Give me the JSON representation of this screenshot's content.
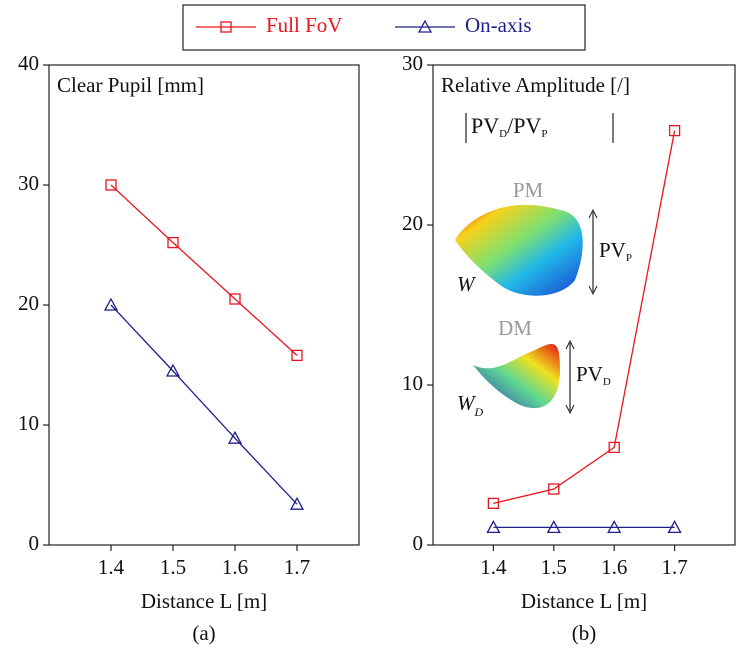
{
  "chart_data": [
    {
      "type": "line",
      "title": "Clear Pupil [mm]",
      "xlabel": "Distance L [m]",
      "caption": "(a)",
      "x": [
        1.4,
        1.5,
        1.6,
        1.7
      ],
      "series": [
        {
          "name": "Full FoV",
          "color": "#e8141e",
          "marker": "square",
          "values": [
            30,
            25.2,
            20.5,
            15.8
          ]
        },
        {
          "name": "On-axis",
          "color": "#1f1f8c",
          "marker": "triangle",
          "values": [
            20,
            14.5,
            8.9,
            3.4
          ]
        }
      ],
      "xlim": [
        1.3,
        1.8
      ],
      "xticks": [
        1.4,
        1.5,
        1.6,
        1.7
      ],
      "ylim": [
        0,
        40
      ],
      "yticks": [
        0,
        10,
        20,
        30,
        40
      ],
      "grid": false
    },
    {
      "type": "line",
      "title": "Relative Amplitude [/]",
      "xlabel": "Distance L [m]",
      "caption": "(b)",
      "formula": [
        "PV",
        "D",
        "/",
        "PV",
        "P"
      ],
      "insets": [
        {
          "mirror": "PM",
          "surface": "W",
          "pv": "PV",
          "pv_sub": "P"
        },
        {
          "mirror": "DM",
          "surface": "W",
          "surface_sub": "D",
          "pv": "PV",
          "pv_sub": "D"
        }
      ],
      "x": [
        1.4,
        1.5,
        1.6,
        1.7
      ],
      "series": [
        {
          "name": "Full FoV",
          "color": "#e8141e",
          "marker": "square",
          "values": [
            2.6,
            3.5,
            6.1,
            25.9
          ]
        },
        {
          "name": "On-axis",
          "color": "#1f1f8c",
          "marker": "triangle",
          "values": [
            1.1,
            1.1,
            1.1,
            1.1
          ]
        }
      ],
      "xlim": [
        1.3,
        1.8
      ],
      "xticks": [
        1.4,
        1.5,
        1.6,
        1.7
      ],
      "ylim": [
        0,
        30
      ],
      "yticks": [
        0,
        10,
        20,
        30
      ],
      "grid": false
    }
  ]
}
